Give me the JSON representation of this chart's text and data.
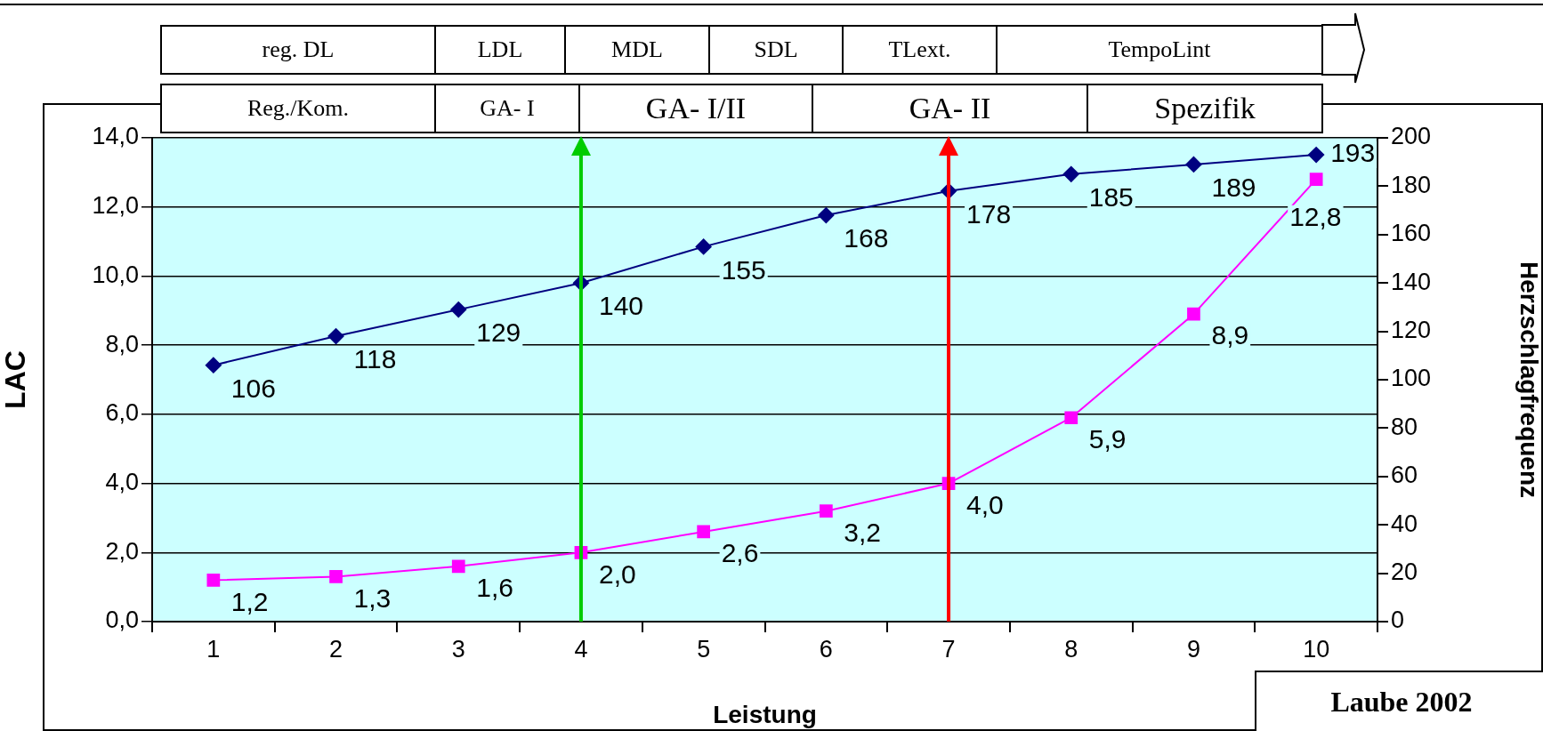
{
  "chart_data": {
    "type": "line",
    "xlabel": "Leistung",
    "ylabel": "LAC",
    "y2label": "Herzschlagfrequenz",
    "categories": [
      "1",
      "2",
      "3",
      "4",
      "5",
      "6",
      "7",
      "8",
      "9",
      "10"
    ],
    "series": [
      {
        "color": "#ff00ff",
        "marker": "square",
        "values": [
          1.2,
          1.3,
          1.6,
          2.0,
          2.6,
          3.2,
          4.0,
          5.9,
          8.9,
          12.8
        ],
        "value_labels": [
          "1,2",
          "1,3",
          "1,6",
          "2,0",
          "2,6",
          "3,2",
          "4,0",
          "5,9",
          "8,9",
          "12,8"
        ]
      },
      {
        "color": "#000080",
        "marker": "diamond",
        "axis": "y2",
        "values": [
          106,
          118,
          129,
          140,
          155,
          168,
          178,
          185,
          189,
          193
        ],
        "value_labels": [
          "106",
          "118",
          "129",
          "140",
          "155",
          "168",
          "178",
          "185",
          "189",
          "193"
        ]
      }
    ],
    "ylim": [
      0,
      14
    ],
    "yticks": [
      {
        "value": 0,
        "label": "0,0"
      },
      {
        "value": 2,
        "label": "2,0"
      },
      {
        "value": 4,
        "label": "4,0"
      },
      {
        "value": 6,
        "label": "6,0"
      },
      {
        "value": 8,
        "label": "8,0"
      },
      {
        "value": 10,
        "label": "10,0"
      },
      {
        "value": 12,
        "label": "12,0"
      },
      {
        "value": 14,
        "label": "14,0"
      }
    ],
    "y2lim": [
      0,
      200
    ],
    "y2ticks": [
      0,
      20,
      40,
      60,
      80,
      100,
      120,
      140,
      160,
      180,
      200
    ],
    "ref_lines": [
      {
        "axis": "x",
        "value": "4",
        "color": "#00cc00"
      },
      {
        "axis": "x",
        "value": "7",
        "color": "#ff0000"
      }
    ],
    "grid": "y",
    "legend": false,
    "line_style": "solid",
    "annotations": [
      "reg. DL",
      "LDL",
      "MDL",
      "SDL",
      "TLext.",
      "TempoLint",
      "Reg./Kom.",
      "GA- I",
      "GA- I/II",
      "GA- II",
      "Spezifik",
      "Laube 2002"
    ]
  }
}
